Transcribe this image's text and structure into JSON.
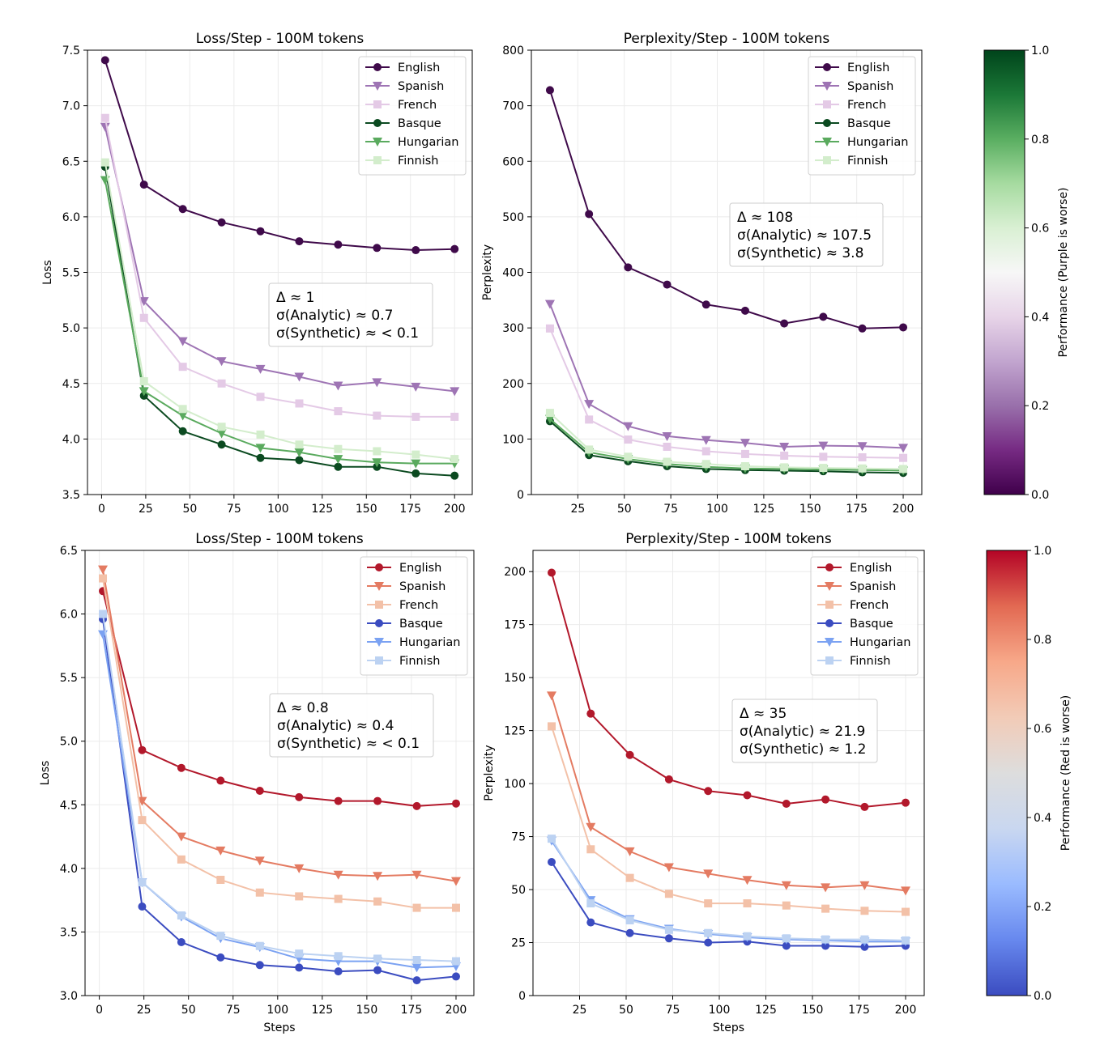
{
  "chart_data": [
    {
      "type": "line",
      "title": "Loss/Step - 100M tokens",
      "xlabel": "",
      "ylabel": "Loss",
      "xlim": [
        -8,
        210
      ],
      "ylim": [
        3.5,
        7.5
      ],
      "xticks": [
        0,
        25,
        50,
        75,
        100,
        125,
        150,
        175,
        200
      ],
      "xtick_labels": [
        "0",
        "25",
        "50",
        "75",
        "100",
        "125",
        "150",
        "175",
        "200"
      ],
      "yticks": [
        3.5,
        4.0,
        4.5,
        5.0,
        5.5,
        6.0,
        6.5,
        7.0,
        7.5
      ],
      "ytick_labels": [
        "3.5",
        "4.0",
        "4.5",
        "5.0",
        "5.5",
        "6.0",
        "6.5",
        "7.0",
        "7.5"
      ],
      "grid": true,
      "legend_position": "top-right",
      "x": [
        2,
        24,
        46,
        68,
        90,
        112,
        134,
        156,
        178,
        200
      ],
      "series": [
        {
          "name": "English",
          "color": "#3f0a4a",
          "marker": "circle",
          "values": [
            7.41,
            6.29,
            6.07,
            5.95,
            5.87,
            5.78,
            5.75,
            5.72,
            5.7,
            5.71
          ]
        },
        {
          "name": "Spanish",
          "color": "#9e74b4",
          "marker": "triangle-down",
          "values": [
            6.81,
            5.24,
            4.88,
            4.7,
            4.63,
            4.56,
            4.48,
            4.51,
            4.47,
            4.43
          ]
        },
        {
          "name": "French",
          "color": "#e4cae6",
          "marker": "square",
          "values": [
            6.89,
            5.09,
            4.65,
            4.5,
            4.38,
            4.32,
            4.25,
            4.21,
            4.2,
            4.2
          ]
        },
        {
          "name": "Basque",
          "color": "#0b4a20",
          "marker": "circle",
          "values": [
            6.45,
            4.39,
            4.07,
            3.95,
            3.83,
            3.81,
            3.75,
            3.75,
            3.69,
            3.67
          ]
        },
        {
          "name": "Hungarian",
          "color": "#5aaa5e",
          "marker": "triangle-down",
          "values": [
            6.33,
            4.43,
            4.21,
            4.05,
            3.92,
            3.88,
            3.82,
            3.79,
            3.78,
            3.78
          ]
        },
        {
          "name": "Finnish",
          "color": "#d3edcc",
          "marker": "square",
          "values": [
            6.49,
            4.52,
            4.27,
            4.11,
            4.04,
            3.95,
            3.91,
            3.89,
            3.86,
            3.82
          ]
        }
      ],
      "annotation": {
        "delta": "Δ ≈ 1",
        "analytic": "σ(Analytic) ≈ 0.7",
        "synthetic": "σ(Synthetic) ≈ < 0.1"
      }
    },
    {
      "type": "line",
      "title": "Perplexity/Step - 100M tokens",
      "xlabel": "",
      "ylabel": "Perplexity",
      "xlim": [
        0,
        210
      ],
      "ylim": [
        0,
        800
      ],
      "xticks": [
        25,
        50,
        75,
        100,
        125,
        150,
        175,
        200
      ],
      "xtick_labels": [
        "25",
        "50",
        "75",
        "100",
        "125",
        "150",
        "175",
        "200"
      ],
      "yticks": [
        0,
        100,
        200,
        300,
        400,
        500,
        600,
        700,
        800
      ],
      "ytick_labels": [
        "0",
        "100",
        "200",
        "300",
        "400",
        "500",
        "600",
        "700",
        "800"
      ],
      "grid": true,
      "legend_position": "top-right",
      "x": [
        10,
        31,
        52,
        73,
        94,
        115,
        136,
        157,
        178,
        200
      ],
      "series": [
        {
          "name": "English",
          "color": "#3f0a4a",
          "marker": "circle",
          "values": [
            728,
            505,
            409,
            378,
            342,
            331,
            308,
            320,
            299,
            301
          ]
        },
        {
          "name": "Spanish",
          "color": "#9e74b4",
          "marker": "triangle-down",
          "values": [
            343,
            163,
            123,
            105,
            98,
            93,
            86,
            88,
            87,
            84
          ]
        },
        {
          "name": "French",
          "color": "#e4cae6",
          "marker": "square",
          "values": [
            299,
            135,
            99,
            86,
            78,
            73,
            70,
            68,
            67,
            66
          ]
        },
        {
          "name": "Basque",
          "color": "#0b4a20",
          "marker": "circle",
          "values": [
            132,
            71,
            60,
            51,
            46,
            44,
            43,
            42,
            40,
            39
          ]
        },
        {
          "name": "Hungarian",
          "color": "#5aaa5e",
          "marker": "triangle-down",
          "values": [
            136,
            76,
            64,
            55,
            50,
            47,
            46,
            45,
            44,
            43
          ]
        },
        {
          "name": "Finnish",
          "color": "#d3edcc",
          "marker": "square",
          "values": [
            147,
            81,
            68,
            59,
            55,
            51,
            49,
            48,
            47,
            46
          ]
        }
      ],
      "annotation": {
        "delta": "Δ ≈ 108",
        "analytic": "σ(Analytic) ≈ 107.5",
        "synthetic": "σ(Synthetic) ≈ 3.8"
      }
    },
    {
      "type": "line",
      "title": "Loss/Step - 100M tokens",
      "xlabel": "Steps",
      "ylabel": "Loss",
      "xlim": [
        -8,
        210
      ],
      "ylim": [
        3.0,
        6.5
      ],
      "xticks": [
        0,
        25,
        50,
        75,
        100,
        125,
        150,
        175,
        200
      ],
      "xtick_labels": [
        "0",
        "25",
        "50",
        "75",
        "100",
        "125",
        "150",
        "175",
        "200"
      ],
      "yticks": [
        3.0,
        3.5,
        4.0,
        4.5,
        5.0,
        5.5,
        6.0,
        6.5
      ],
      "ytick_labels": [
        "3.0",
        "3.5",
        "4.0",
        "4.5",
        "5.0",
        "5.5",
        "6.0",
        "6.5"
      ],
      "grid": true,
      "legend_position": "top-right",
      "x": [
        2,
        24,
        46,
        68,
        90,
        112,
        134,
        156,
        178,
        200
      ],
      "series": [
        {
          "name": "English",
          "color": "#b2182b",
          "marker": "circle",
          "values": [
            6.18,
            4.93,
            4.79,
            4.69,
            4.61,
            4.56,
            4.53,
            4.53,
            4.49,
            4.51
          ]
        },
        {
          "name": "Spanish",
          "color": "#e47b62",
          "marker": "triangle-down",
          "values": [
            6.35,
            4.53,
            4.25,
            4.14,
            4.06,
            4.0,
            3.95,
            3.94,
            3.95,
            3.9
          ]
        },
        {
          "name": "French",
          "color": "#f3c1a8",
          "marker": "square",
          "values": [
            6.28,
            4.38,
            4.07,
            3.91,
            3.81,
            3.78,
            3.76,
            3.74,
            3.69,
            3.69
          ]
        },
        {
          "name": "Basque",
          "color": "#3b4cc0",
          "marker": "circle",
          "values": [
            5.96,
            3.7,
            3.42,
            3.3,
            3.24,
            3.22,
            3.19,
            3.2,
            3.12,
            3.15
          ]
        },
        {
          "name": "Hungarian",
          "color": "#7ba2f2",
          "marker": "triangle-down",
          "values": [
            5.84,
            3.89,
            3.62,
            3.45,
            3.38,
            3.29,
            3.27,
            3.27,
            3.22,
            3.23
          ]
        },
        {
          "name": "Finnish",
          "color": "#bcd2f2",
          "marker": "square",
          "values": [
            6.0,
            3.89,
            3.63,
            3.47,
            3.39,
            3.33,
            3.31,
            3.29,
            3.28,
            3.27
          ]
        }
      ],
      "annotation": {
        "delta": "Δ ≈ 0.8",
        "analytic": "σ(Analytic) ≈ 0.4",
        "synthetic": "σ(Synthetic) ≈ < 0.1"
      }
    },
    {
      "type": "line",
      "title": "Perplexity/Step - 100M tokens",
      "xlabel": "Steps",
      "ylabel": "Perplexity",
      "xlim": [
        0,
        210
      ],
      "ylim": [
        0,
        210
      ],
      "xticks": [
        25,
        50,
        75,
        100,
        125,
        150,
        175,
        200
      ],
      "xtick_labels": [
        "25",
        "50",
        "75",
        "100",
        "125",
        "150",
        "175",
        "200"
      ],
      "yticks": [
        0,
        25,
        50,
        75,
        100,
        125,
        150,
        175,
        200
      ],
      "ytick_labels": [
        "0",
        "25",
        "50",
        "75",
        "100",
        "125",
        "150",
        "175",
        "200"
      ],
      "grid": true,
      "legend_position": "top-right",
      "x": [
        10,
        31,
        52,
        73,
        94,
        115,
        136,
        157,
        178,
        200
      ],
      "series": [
        {
          "name": "English",
          "color": "#b2182b",
          "marker": "circle",
          "values": [
            199.5,
            133,
            113.5,
            102,
            96.5,
            94.5,
            90.5,
            92.5,
            89,
            91
          ]
        },
        {
          "name": "Spanish",
          "color": "#e47b62",
          "marker": "triangle-down",
          "values": [
            141.5,
            79.5,
            68,
            60.5,
            57.5,
            54.5,
            52,
            51,
            52,
            49.5
          ]
        },
        {
          "name": "French",
          "color": "#f3c1a8",
          "marker": "square",
          "values": [
            127,
            69,
            55.5,
            48,
            43.5,
            43.5,
            42.5,
            41,
            40,
            39.5
          ]
        },
        {
          "name": "Basque",
          "color": "#3b4cc0",
          "marker": "circle",
          "values": [
            63,
            34.5,
            29.5,
            27,
            25,
            25.5,
            23.5,
            23.5,
            23,
            23.5
          ]
        },
        {
          "name": "Hungarian",
          "color": "#7ba2f2",
          "marker": "triangle-down",
          "values": [
            73,
            45,
            36,
            31.5,
            29,
            27.5,
            26.5,
            26,
            25.5,
            25.5
          ]
        },
        {
          "name": "Finnish",
          "color": "#bcd2f2",
          "marker": "square",
          "values": [
            74,
            43.5,
            35.5,
            31,
            29.5,
            28,
            27,
            26.5,
            26.5,
            26
          ]
        }
      ],
      "annotation": {
        "delta": "Δ ≈ 35",
        "analytic": "σ(Analytic) ≈ 21.9",
        "synthetic": "σ(Synthetic) ≈ 1.2"
      }
    }
  ],
  "colorbars": [
    {
      "label": "Performance (Purple is worse)",
      "range": [
        0,
        1
      ],
      "ticks": [
        "0.0",
        "0.2",
        "0.4",
        "0.6",
        "0.8",
        "1.0"
      ],
      "colors": [
        "#40004b",
        "#762a83",
        "#9970ab",
        "#c2a5cf",
        "#e7d4e8",
        "#f7f7f7",
        "#d9f0d3",
        "#a6dba0",
        "#5aae61",
        "#1b7837",
        "#00441b"
      ]
    },
    {
      "label": "Performance (Red is worse)",
      "range": [
        0,
        1
      ],
      "ticks": [
        "0.0",
        "0.2",
        "0.4",
        "0.6",
        "0.8",
        "1.0"
      ],
      "colors": [
        "#3b4cc0",
        "#6788ee",
        "#9abbff",
        "#c9d7f0",
        "#dddddd",
        "#f2cbb7",
        "#f7a889",
        "#e26952",
        "#b40426"
      ]
    }
  ]
}
